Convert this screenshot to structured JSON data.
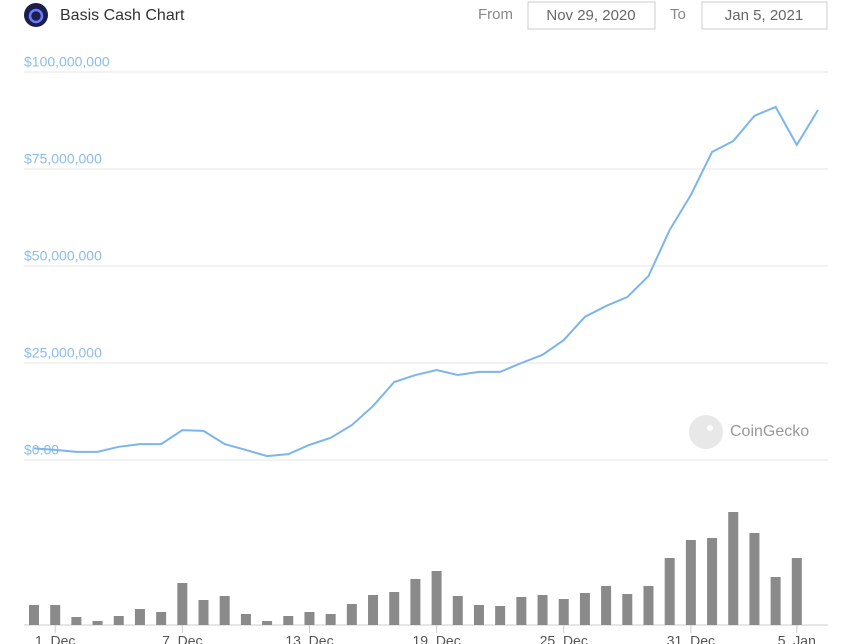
{
  "header": {
    "title": "Basis Cash Chart",
    "from_label": "From",
    "from_date": "Nov 29, 2020",
    "to_label": "To",
    "to_date": "Jan 5, 2021"
  },
  "watermark": "CoinGecko",
  "chart_data": [
    {
      "type": "line",
      "color": "#7cb5ec",
      "grid": true,
      "x": [
        "2020-11-30",
        "2020-12-01",
        "2020-12-02",
        "2020-12-03",
        "2020-12-04",
        "2020-12-05",
        "2020-12-06",
        "2020-12-07",
        "2020-12-08",
        "2020-12-09",
        "2020-12-10",
        "2020-12-11",
        "2020-12-12",
        "2020-12-13",
        "2020-12-14",
        "2020-12-15",
        "2020-12-16",
        "2020-12-17",
        "2020-12-18",
        "2020-12-19",
        "2020-12-20",
        "2020-12-21",
        "2020-12-22",
        "2020-12-23",
        "2020-12-24",
        "2020-12-25",
        "2020-12-26",
        "2020-12-27",
        "2020-12-28",
        "2020-12-29",
        "2020-12-30",
        "2020-12-31",
        "2021-01-01",
        "2021-01-02",
        "2021-01-03",
        "2021-01-04",
        "2021-01-05",
        "2021-01-06"
      ],
      "values": [
        3000000,
        2600000,
        2100000,
        2100000,
        3400000,
        4100000,
        4100000,
        7700000,
        7500000,
        4100000,
        2600000,
        1000000,
        1500000,
        3900000,
        5700000,
        9000000,
        13900000,
        20100000,
        21900000,
        23200000,
        21900000,
        22700000,
        22700000,
        25000000,
        27100000,
        30900000,
        36900000,
        39700000,
        42000000,
        47400000,
        59300000,
        68300000,
        79400000,
        82200000,
        88700000,
        91000000,
        81200000,
        90200000
      ],
      "xlim": [
        "2020-11-30",
        "2021-01-06"
      ],
      "ylim": [
        0,
        100000000
      ],
      "yticks": [
        {
          "value": 0,
          "label": "$0.00"
        },
        {
          "value": 25000000,
          "label": "$25,000,000"
        },
        {
          "value": 50000000,
          "label": "$50,000,000"
        },
        {
          "value": 75000000,
          "label": "$75,000,000"
        },
        {
          "value": 100000000,
          "label": "$100,000,000"
        }
      ]
    },
    {
      "type": "bar",
      "color": "#8a8a8a",
      "x": [
        "2020-11-30",
        "2020-12-01",
        "2020-12-02",
        "2020-12-03",
        "2020-12-04",
        "2020-12-05",
        "2020-12-06",
        "2020-12-07",
        "2020-12-08",
        "2020-12-09",
        "2020-12-10",
        "2020-12-11",
        "2020-12-12",
        "2020-12-13",
        "2020-12-14",
        "2020-12-15",
        "2020-12-16",
        "2020-12-17",
        "2020-12-18",
        "2020-12-19",
        "2020-12-20",
        "2020-12-21",
        "2020-12-22",
        "2020-12-23",
        "2020-12-24",
        "2020-12-25",
        "2020-12-26",
        "2020-12-27",
        "2020-12-28",
        "2020-12-29",
        "2020-12-30",
        "2020-12-31",
        "2021-01-01",
        "2021-01-02",
        "2021-01-03",
        "2021-01-04",
        "2021-01-05"
      ],
      "values": [
        20,
        20,
        8,
        4,
        9,
        16,
        13,
        42,
        25,
        29,
        11,
        4,
        9,
        13,
        11,
        21,
        30,
        33,
        46,
        54,
        29,
        20,
        19,
        28,
        30,
        26,
        32,
        39,
        31,
        39,
        67,
        85,
        87,
        113,
        92,
        48,
        67
      ],
      "xlim": [
        "2020-11-30",
        "2021-01-06"
      ],
      "ylim": [
        0,
        120
      ],
      "xticks": [
        {
          "value": "2020-12-01",
          "label": "1. Dec"
        },
        {
          "value": "2020-12-07",
          "label": "7. Dec"
        },
        {
          "value": "2020-12-13",
          "label": "13. Dec"
        },
        {
          "value": "2020-12-19",
          "label": "19. Dec"
        },
        {
          "value": "2020-12-25",
          "label": "25. Dec"
        },
        {
          "value": "2020-12-31",
          "label": "31. Dec"
        },
        {
          "value": "2021-01-05",
          "label": "5. Jan"
        }
      ]
    }
  ]
}
